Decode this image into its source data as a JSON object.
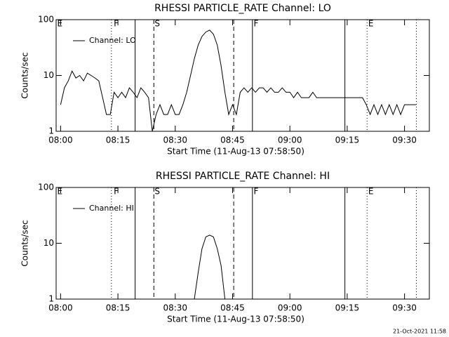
{
  "chart_data": [
    {
      "type": "line",
      "title": "RHESSI PARTICLE_RATE Channel: LO",
      "ylabel": "Counts/sec",
      "xlabel": "Start Time (11-Aug-13 07:58:50)",
      "log_y": true,
      "ylim": [
        1,
        100
      ],
      "yticks": [
        1,
        10,
        100
      ],
      "xlim": [
        -1.17,
        96.5
      ],
      "xticks": [
        {
          "value": 0,
          "label": "08:00"
        },
        {
          "value": 15,
          "label": "08:15"
        },
        {
          "value": 30,
          "label": "08:30"
        },
        {
          "value": 45,
          "label": "08:45"
        },
        {
          "value": 60,
          "label": "09:00"
        },
        {
          "value": 75,
          "label": "09:15"
        },
        {
          "value": 90,
          "label": "09:30"
        }
      ],
      "legend": "upper left",
      "series": [
        {
          "name": "Channel: LO",
          "color": "#000000",
          "x": [
            0,
            1,
            2,
            3,
            4,
            5,
            6,
            7,
            8,
            9,
            10,
            11,
            12,
            13,
            14,
            15,
            16,
            17,
            18,
            19,
            20,
            21,
            22,
            23,
            24,
            25,
            26,
            27,
            28,
            29,
            30,
            31,
            32,
            33,
            34,
            35,
            36,
            37,
            38,
            39,
            40,
            41,
            42,
            43,
            44,
            45,
            46,
            47,
            48,
            49,
            50,
            51,
            52,
            53,
            54,
            55,
            56,
            57,
            58,
            59,
            60,
            61,
            62,
            63,
            64,
            65,
            66,
            67,
            68,
            69,
            70,
            71,
            72,
            73,
            74,
            75,
            76,
            77,
            78,
            79,
            80,
            81,
            82,
            83,
            84,
            85,
            86,
            87,
            88,
            89,
            90,
            91,
            92,
            93
          ],
          "values": [
            3,
            6,
            8,
            12,
            9,
            10,
            8,
            11,
            10,
            9,
            8,
            4,
            2,
            2,
            5,
            4,
            5,
            4,
            6,
            5,
            4,
            6,
            5,
            4,
            1,
            2,
            3,
            2,
            2,
            3,
            2,
            2,
            3,
            5,
            10,
            20,
            35,
            50,
            60,
            65,
            55,
            35,
            15,
            5,
            2,
            3,
            2,
            5,
            6,
            5,
            6,
            5,
            6,
            6,
            5,
            6,
            5,
            5,
            6,
            5,
            5,
            4,
            5,
            4,
            4,
            4,
            5,
            4,
            4,
            4,
            4,
            4,
            4,
            4,
            4,
            4,
            4,
            4,
            4,
            4,
            3,
            2,
            3,
            2,
            3,
            2,
            3,
            2,
            3,
            2,
            3,
            3,
            3,
            3
          ]
        }
      ],
      "vlines": [
        {
          "x": 13.3,
          "style": "dotted"
        },
        {
          "x": 19.5,
          "style": "solid"
        },
        {
          "x": 24.4,
          "style": "dashed"
        },
        {
          "x": 45.3,
          "style": "dashed"
        },
        {
          "x": 50.2,
          "style": "solid"
        },
        {
          "x": 74.4,
          "style": "solid"
        },
        {
          "x": 80.2,
          "style": "dotted"
        },
        {
          "x": 93.1,
          "style": "dotted"
        }
      ],
      "annotations": [
        {
          "x": -0.9,
          "text": "E"
        },
        {
          "x": 13.9,
          "text": "F"
        },
        {
          "x": 24.6,
          "text": "S"
        },
        {
          "x": 50.5,
          "text": "F"
        },
        {
          "x": 80.5,
          "text": "E"
        }
      ]
    },
    {
      "type": "line",
      "title": "RHESSI PARTICLE_RATE Channel: HI",
      "ylabel": "Counts/sec",
      "xlabel": "Start Time (11-Aug-13 07:58:50)",
      "log_y": true,
      "ylim": [
        1,
        100
      ],
      "yticks": [
        1,
        10,
        100
      ],
      "xlim": [
        -1.17,
        96.5
      ],
      "xticks": [
        {
          "value": 0,
          "label": "08:00"
        },
        {
          "value": 15,
          "label": "08:15"
        },
        {
          "value": 30,
          "label": "08:30"
        },
        {
          "value": 45,
          "label": "08:45"
        },
        {
          "value": 60,
          "label": "09:00"
        },
        {
          "value": 75,
          "label": "09:15"
        },
        {
          "value": 90,
          "label": "09:30"
        }
      ],
      "legend": "upper left",
      "series": [
        {
          "name": "Channel: HI",
          "color": "#000000",
          "x": [
            35,
            36,
            37,
            38,
            39,
            40,
            41,
            42,
            43
          ],
          "values": [
            1,
            3,
            8,
            13,
            14,
            13,
            8,
            4,
            1
          ]
        }
      ],
      "vlines": [
        {
          "x": 13.3,
          "style": "dotted"
        },
        {
          "x": 19.5,
          "style": "solid"
        },
        {
          "x": 24.4,
          "style": "dashed"
        },
        {
          "x": 45.3,
          "style": "dashed"
        },
        {
          "x": 50.2,
          "style": "solid"
        },
        {
          "x": 74.4,
          "style": "solid"
        },
        {
          "x": 80.2,
          "style": "dotted"
        },
        {
          "x": 93.1,
          "style": "dotted"
        }
      ],
      "annotations": [
        {
          "x": -0.9,
          "text": "E"
        },
        {
          "x": 13.9,
          "text": "F"
        },
        {
          "x": 24.6,
          "text": "S"
        },
        {
          "x": 50.5,
          "text": "F"
        },
        {
          "x": 80.5,
          "text": "E"
        }
      ]
    }
  ],
  "timestamp": "21-Oct-2021 11:58"
}
